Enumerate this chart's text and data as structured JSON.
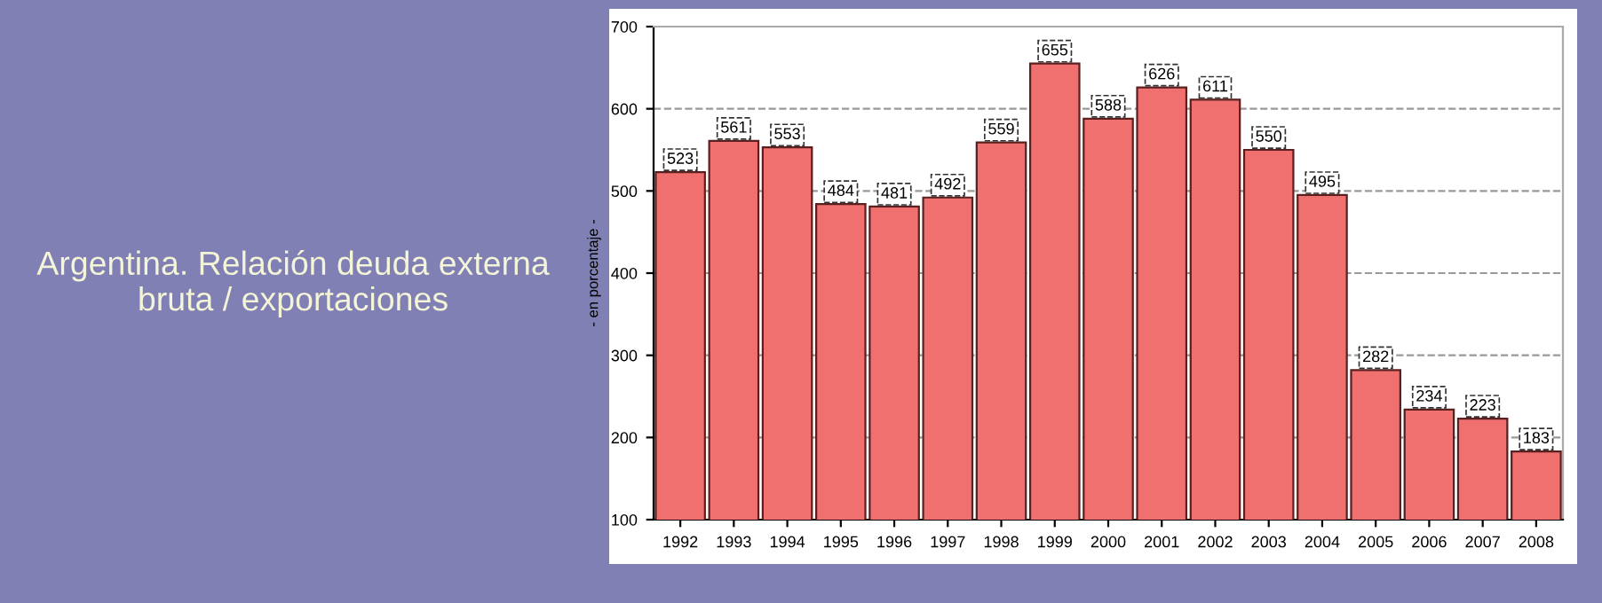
{
  "chart_data": {
    "type": "bar",
    "title": "Argentina. Relación deuda externa bruta / exportaciones",
    "ylabel": "- en porcentaje -",
    "categories": [
      "1992",
      "1993",
      "1994",
      "1995",
      "1996",
      "1997",
      "1998",
      "1999",
      "2000",
      "2001",
      "2002",
      "2003",
      "2004",
      "2005",
      "2006",
      "2007",
      "2008"
    ],
    "values": [
      523,
      561,
      553,
      484,
      481,
      492,
      559,
      655,
      588,
      626,
      611,
      550,
      495,
      282,
      234,
      223,
      183
    ],
    "color": "#f07070",
    "ylim": [
      100,
      700
    ],
    "yticks": [
      100,
      200,
      300,
      400,
      500,
      600,
      700
    ],
    "grid": "y",
    "data_labels": true
  }
}
